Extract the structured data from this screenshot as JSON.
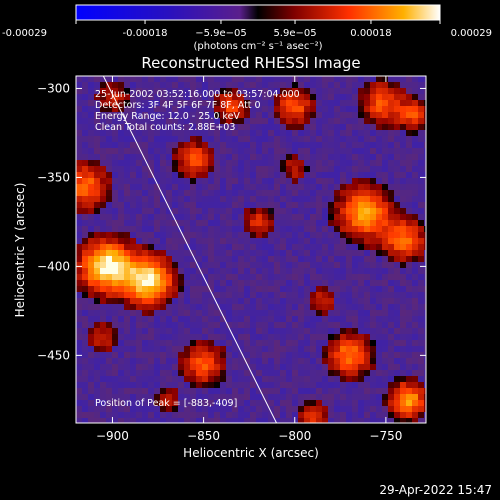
{
  "chart_data": {
    "type": "heatmap",
    "title": "Reconstructed RHESSI Image",
    "xlabel": "Heliocentric X (arcsec)",
    "ylabel": "Heliocentric Y (arcsec)",
    "xlim": [
      -920,
      -728
    ],
    "ylim": [
      -488,
      -293
    ],
    "x_ticks": [
      -900,
      -850,
      -800,
      -750
    ],
    "x_tick_labels": [
      "−900",
      "−850",
      "−800",
      "−750"
    ],
    "y_ticks": [
      -300,
      -350,
      -400,
      -450
    ],
    "y_tick_labels": [
      "−300",
      "−350",
      "−400",
      "−450"
    ],
    "colorbar": {
      "min": -0.00029,
      "max": 0.00029,
      "tick_values": [
        -0.00029,
        -0.00018,
        -5.9e-05,
        5.9e-05,
        0.00018,
        0.00029
      ],
      "tick_labels": [
        "-0.00029",
        "-0.00018",
        "−5.9e−05",
        "5.9e−05",
        "0.00018",
        "0.00029"
      ],
      "units_label": "(photons cm⁻² s⁻¹ asec⁻²)"
    },
    "info_lines": [
      "25-Jun-2002 03:52:16.000 to 03:57:04.000",
      "Detectors: 3F 4F 5F 6F 7F 8F, Att 0",
      "Energy Range: 12.0 - 25.0 keV",
      "Clean    Total counts: 2.88E+03"
    ],
    "peak_label": "Position of Peak = [-883,-409]",
    "limb_line": {
      "from": [
        -905,
        -293
      ],
      "to": [
        -810,
        -488
      ]
    },
    "sources": [
      {
        "x": -903,
        "y": -400,
        "sigma": 10,
        "amp": 1.0
      },
      {
        "x": -880,
        "y": -408,
        "sigma": 9,
        "amp": 0.95
      },
      {
        "x": -915,
        "y": -355,
        "sigma": 9,
        "amp": 0.6
      },
      {
        "x": -855,
        "y": -340,
        "sigma": 7,
        "amp": 0.55
      },
      {
        "x": -850,
        "y": -455,
        "sigma": 8,
        "amp": 0.55
      },
      {
        "x": -835,
        "y": -310,
        "sigma": 6,
        "amp": 0.5
      },
      {
        "x": -800,
        "y": -310,
        "sigma": 7,
        "amp": 0.55
      },
      {
        "x": -752,
        "y": -308,
        "sigma": 8,
        "amp": 0.55
      },
      {
        "x": -735,
        "y": -315,
        "sigma": 6,
        "amp": 0.5
      },
      {
        "x": -762,
        "y": -370,
        "sigma": 10,
        "amp": 0.75
      },
      {
        "x": -740,
        "y": -385,
        "sigma": 8,
        "amp": 0.6
      },
      {
        "x": -820,
        "y": -375,
        "sigma": 6,
        "amp": 0.4
      },
      {
        "x": -800,
        "y": -345,
        "sigma": 5,
        "amp": 0.35
      },
      {
        "x": -785,
        "y": -420,
        "sigma": 5,
        "amp": 0.4
      },
      {
        "x": -770,
        "y": -450,
        "sigma": 8,
        "amp": 0.65
      },
      {
        "x": -738,
        "y": -475,
        "sigma": 7,
        "amp": 0.75
      },
      {
        "x": -790,
        "y": -485,
        "sigma": 6,
        "amp": 0.45
      },
      {
        "x": -870,
        "y": -475,
        "sigma": 5,
        "amp": 0.3
      },
      {
        "x": -905,
        "y": -440,
        "sigma": 6,
        "amp": 0.35
      },
      {
        "x": -900,
        "y": -305,
        "sigma": 6,
        "amp": 0.35
      }
    ],
    "grid": false
  },
  "timestamp": "29-Apr-2022 15:47"
}
